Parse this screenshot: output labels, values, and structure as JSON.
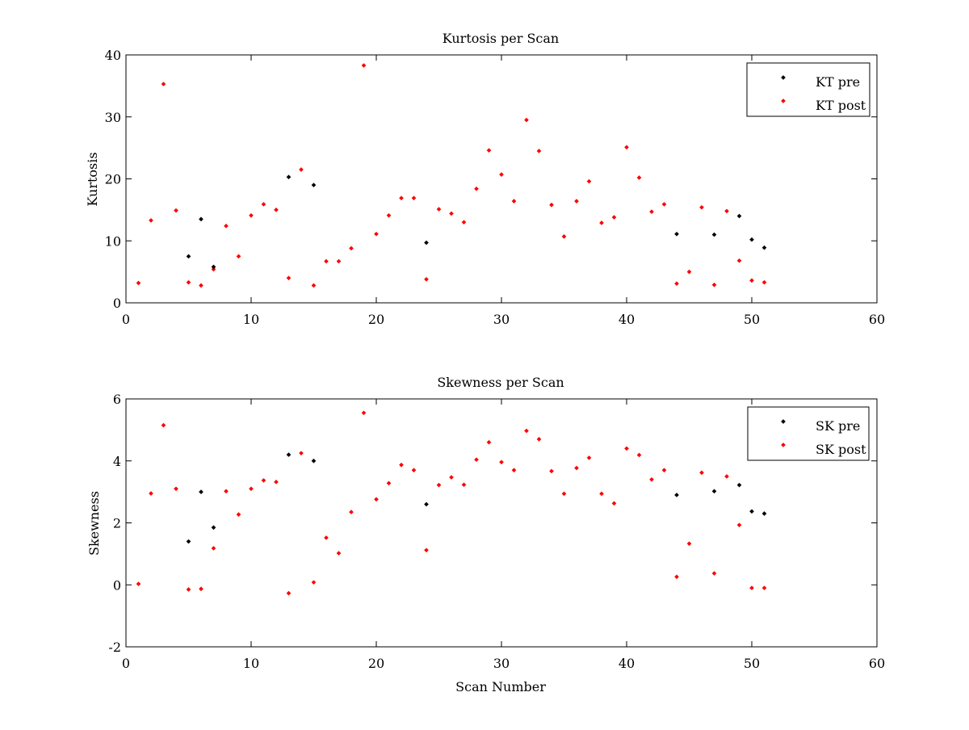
{
  "chart_data": [
    {
      "type": "scatter",
      "title": "Kurtosis per Scan",
      "xlabel": "",
      "ylabel": "Kurtosis",
      "xlim": [
        0,
        60
      ],
      "ylim": [
        0,
        40
      ],
      "x_ticks": [
        0,
        10,
        20,
        30,
        40,
        50,
        60
      ],
      "y_ticks": [
        0,
        10,
        20,
        30,
        40
      ],
      "grid": false,
      "legend_position": "top-right",
      "series": [
        {
          "name": "KT pre",
          "color": "#000000",
          "x": [
            5,
            6,
            7,
            13,
            15,
            24,
            44,
            47,
            49,
            50,
            51
          ],
          "y": [
            7.5,
            13.5,
            5.8,
            20.3,
            19.0,
            9.7,
            11.1,
            11.0,
            14.0,
            10.2,
            8.9
          ]
        },
        {
          "name": "KT post",
          "color": "#ff0000",
          "x": [
            1,
            2,
            3,
            4,
            5,
            6,
            7,
            8,
            9,
            10,
            11,
            12,
            13,
            14,
            15,
            16,
            17,
            18,
            19,
            20,
            21,
            22,
            23,
            24,
            25,
            26,
            27,
            28,
            29,
            30,
            31,
            32,
            33,
            34,
            35,
            36,
            37,
            38,
            39,
            40,
            41,
            42,
            43,
            44,
            45,
            46,
            47,
            48,
            49,
            50,
            51
          ],
          "y": [
            3.2,
            13.3,
            35.3,
            14.9,
            3.3,
            2.8,
            5.4,
            12.4,
            7.5,
            14.1,
            15.9,
            15.0,
            4.0,
            21.5,
            2.8,
            6.7,
            6.7,
            8.8,
            38.3,
            11.1,
            14.1,
            16.9,
            16.9,
            3.8,
            15.1,
            14.4,
            13.0,
            18.4,
            24.6,
            20.7,
            16.4,
            29.5,
            24.5,
            15.8,
            10.7,
            16.4,
            19.6,
            12.9,
            13.8,
            25.1,
            20.2,
            14.7,
            15.9,
            3.1,
            5.0,
            15.4,
            2.9,
            14.8,
            6.8,
            3.6,
            3.3
          ]
        }
      ]
    },
    {
      "type": "scatter",
      "title": "Skewness per Scan",
      "xlabel": "Scan Number",
      "ylabel": "Skewness",
      "xlim": [
        0,
        60
      ],
      "ylim": [
        -2,
        6
      ],
      "x_ticks": [
        0,
        10,
        20,
        30,
        40,
        50,
        60
      ],
      "y_ticks": [
        -2,
        0,
        2,
        4,
        6
      ],
      "grid": false,
      "legend_position": "top-right",
      "series": [
        {
          "name": "SK pre",
          "color": "#000000",
          "x": [
            5,
            6,
            7,
            13,
            15,
            24,
            44,
            47,
            49,
            50,
            51
          ],
          "y": [
            1.4,
            3.0,
            1.85,
            4.2,
            4.0,
            2.6,
            2.9,
            3.02,
            3.22,
            2.37,
            2.3
          ]
        },
        {
          "name": "SK post",
          "color": "#ff0000",
          "x": [
            1,
            2,
            3,
            4,
            5,
            6,
            7,
            8,
            9,
            10,
            11,
            12,
            13,
            14,
            15,
            16,
            17,
            18,
            19,
            20,
            21,
            22,
            23,
            24,
            25,
            26,
            27,
            28,
            29,
            30,
            31,
            32,
            33,
            34,
            35,
            36,
            37,
            38,
            39,
            40,
            41,
            42,
            43,
            44,
            45,
            46,
            47,
            48,
            49,
            50,
            51
          ],
          "y": [
            0.03,
            2.95,
            5.15,
            3.1,
            -0.15,
            -0.13,
            1.18,
            3.02,
            2.27,
            3.1,
            3.37,
            3.32,
            -0.27,
            4.25,
            0.08,
            1.52,
            1.02,
            2.35,
            5.55,
            2.76,
            3.28,
            3.87,
            3.7,
            1.12,
            3.22,
            3.47,
            3.23,
            4.04,
            4.6,
            3.96,
            3.7,
            4.97,
            4.7,
            3.67,
            2.94,
            3.77,
            4.1,
            2.94,
            2.63,
            4.4,
            4.19,
            3.4,
            3.7,
            0.26,
            1.33,
            3.62,
            0.37,
            3.5,
            1.93,
            -0.1,
            -0.1
          ]
        }
      ]
    }
  ]
}
